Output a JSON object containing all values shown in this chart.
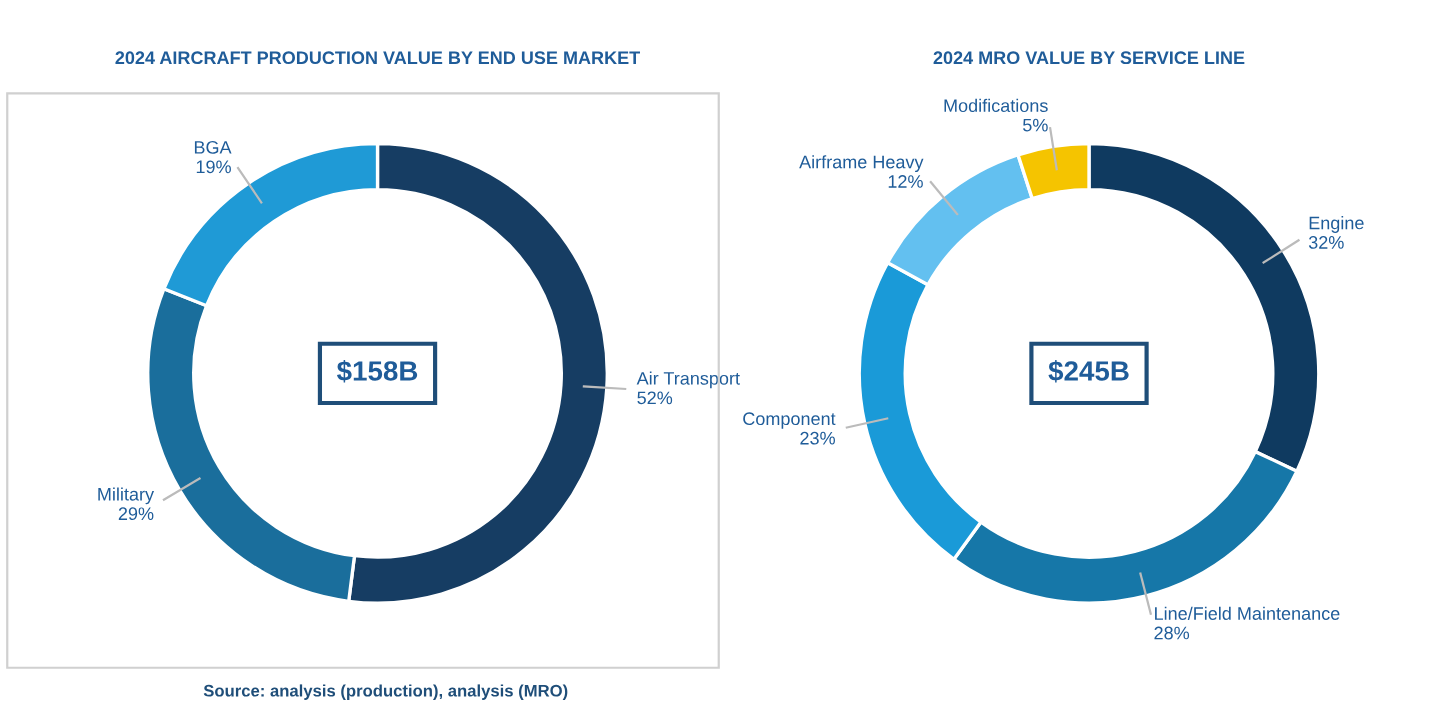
{
  "chart_data": [
    {
      "type": "donut",
      "title": "2024 AIRCRAFT PRODUCTION VALUE BY END USE MARKET",
      "categories": [
        "Air Transport",
        "Military",
        "BGA"
      ],
      "values": [
        52,
        29,
        19
      ],
      "value_labels": [
        "52%",
        "29%",
        "19%"
      ],
      "colors": [
        "#163d63",
        "#1a6e9c",
        "#1f9ad6"
      ],
      "annotations": [
        "$158B"
      ]
    },
    {
      "type": "donut",
      "title": "2024 MRO VALUE BY SERVICE LINE",
      "categories": [
        "Engine",
        "Line/Field Maintenance",
        "Component",
        "Airframe Heavy",
        "Modifications"
      ],
      "values": [
        32,
        28,
        23,
        12,
        5
      ],
      "value_labels": [
        "32%",
        "28%",
        "23%",
        "12%",
        "5%"
      ],
      "colors": [
        "#0f3a60",
        "#1677a8",
        "#1a9ad8",
        "#63c0f0",
        "#f5c400"
      ],
      "annotations": [
        "$245B",
        "Source: analysis (production), analysis (MRO)"
      ]
    }
  ]
}
